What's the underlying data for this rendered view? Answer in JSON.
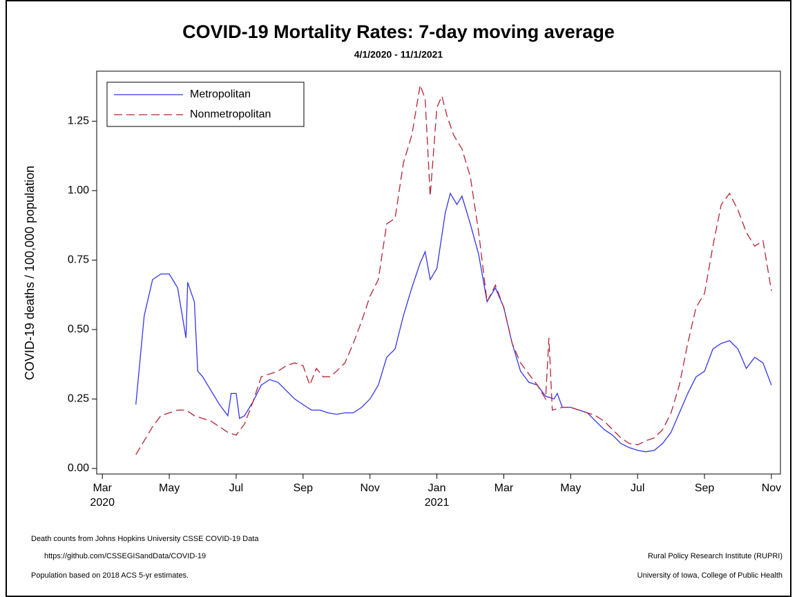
{
  "chart_data": {
    "type": "line",
    "title": "COVID-19 Mortality Rates: 7-day moving average",
    "subtitle": "4/1/2020 - 11/1/2021",
    "y_label": "COVID-19 deaths / 100,000 population",
    "xlim": [
      -0.17,
      20.27
    ],
    "xticks": [
      {
        "value": 0,
        "label": "Mar"
      },
      {
        "value": 2,
        "label": "May"
      },
      {
        "value": 4,
        "label": "Jul"
      },
      {
        "value": 6,
        "label": "Sep"
      },
      {
        "value": 8,
        "label": "Nov"
      },
      {
        "value": 10,
        "label": "Jan"
      },
      {
        "value": 12,
        "label": "Mar"
      },
      {
        "value": 14,
        "label": "May"
      },
      {
        "value": 16,
        "label": "Jul"
      },
      {
        "value": 18,
        "label": "Sep"
      },
      {
        "value": 20,
        "label": "Nov"
      }
    ],
    "year_labels": [
      {
        "value": 0,
        "label": "2020"
      },
      {
        "value": 10,
        "label": "2021"
      }
    ],
    "ylim": [
      -0.02,
      1.43
    ],
    "yticks": [
      {
        "value": 0,
        "label": "0.00"
      },
      {
        "value": 0.25,
        "label": "0.25"
      },
      {
        "value": 0.5,
        "label": "0.50"
      },
      {
        "value": 0.75,
        "label": "0.75"
      },
      {
        "value": 1,
        "label": "1.00"
      },
      {
        "value": 1.25,
        "label": "1.25"
      }
    ],
    "legend": "top-left",
    "series": [
      {
        "name": "Metropolitan",
        "color": "#3333ee",
        "dash": false,
        "x": [
          1.0,
          1.25,
          1.5,
          1.75,
          2.0,
          2.25,
          2.5,
          2.55,
          2.75,
          2.85,
          3.0,
          3.25,
          3.5,
          3.75,
          3.85,
          4.0,
          4.1,
          4.25,
          4.5,
          4.75,
          5.0,
          5.25,
          5.5,
          5.75,
          6.0,
          6.25,
          6.5,
          6.75,
          7.0,
          7.25,
          7.5,
          7.75,
          8.0,
          8.25,
          8.5,
          8.75,
          9.0,
          9.25,
          9.5,
          9.65,
          9.8,
          10.0,
          10.25,
          10.4,
          10.6,
          10.75,
          11.0,
          11.25,
          11.5,
          11.75,
          12.0,
          12.25,
          12.5,
          12.75,
          13.0,
          13.25,
          13.5,
          13.6,
          13.75,
          14.0,
          14.25,
          14.5,
          14.75,
          15.0,
          15.25,
          15.5,
          15.75,
          16.0,
          16.25,
          16.5,
          16.75,
          17.0,
          17.25,
          17.5,
          17.75,
          18.0,
          18.25,
          18.5,
          18.75,
          19.0,
          19.25,
          19.5,
          19.75,
          20.0
        ],
        "values": [
          0.23,
          0.55,
          0.68,
          0.7,
          0.7,
          0.65,
          0.47,
          0.67,
          0.6,
          0.35,
          0.33,
          0.28,
          0.23,
          0.19,
          0.27,
          0.27,
          0.18,
          0.19,
          0.24,
          0.3,
          0.32,
          0.31,
          0.28,
          0.25,
          0.23,
          0.21,
          0.21,
          0.2,
          0.195,
          0.2,
          0.2,
          0.22,
          0.25,
          0.3,
          0.4,
          0.43,
          0.55,
          0.65,
          0.74,
          0.78,
          0.68,
          0.72,
          0.92,
          0.99,
          0.95,
          0.98,
          0.88,
          0.77,
          0.6,
          0.65,
          0.58,
          0.45,
          0.35,
          0.31,
          0.3,
          0.26,
          0.25,
          0.27,
          0.22,
          0.22,
          0.21,
          0.2,
          0.17,
          0.14,
          0.12,
          0.09,
          0.075,
          0.065,
          0.06,
          0.065,
          0.09,
          0.13,
          0.2,
          0.27,
          0.33,
          0.35,
          0.43,
          0.45,
          0.46,
          0.43,
          0.36,
          0.4,
          0.38,
          0.3
        ]
      },
      {
        "name": "Nonmetropolitan",
        "color": "#b22234",
        "dash": true,
        "x": [
          1.0,
          1.25,
          1.5,
          1.75,
          2.0,
          2.25,
          2.5,
          2.75,
          3.0,
          3.25,
          3.5,
          3.75,
          4.0,
          4.25,
          4.5,
          4.75,
          5.0,
          5.25,
          5.5,
          5.75,
          6.0,
          6.2,
          6.4,
          6.6,
          6.8,
          7.0,
          7.25,
          7.5,
          7.75,
          8.0,
          8.25,
          8.5,
          8.75,
          9.0,
          9.25,
          9.5,
          9.65,
          9.8,
          10.0,
          10.15,
          10.3,
          10.5,
          10.75,
          11.0,
          11.25,
          11.5,
          11.75,
          12.0,
          12.25,
          12.5,
          12.75,
          13.0,
          13.25,
          13.35,
          13.45,
          13.75,
          14.0,
          14.25,
          14.5,
          14.75,
          15.0,
          15.25,
          15.5,
          15.75,
          16.0,
          16.25,
          16.5,
          16.75,
          17.0,
          17.25,
          17.5,
          17.75,
          18.0,
          18.25,
          18.5,
          18.75,
          19.0,
          19.25,
          19.5,
          19.75,
          20.0
        ],
        "values": [
          0.05,
          0.1,
          0.15,
          0.19,
          0.2,
          0.21,
          0.21,
          0.19,
          0.18,
          0.17,
          0.15,
          0.13,
          0.12,
          0.16,
          0.24,
          0.33,
          0.34,
          0.35,
          0.37,
          0.38,
          0.37,
          0.3,
          0.36,
          0.33,
          0.33,
          0.35,
          0.38,
          0.45,
          0.53,
          0.62,
          0.68,
          0.88,
          0.9,
          1.1,
          1.2,
          1.38,
          1.33,
          0.98,
          1.3,
          1.34,
          1.27,
          1.2,
          1.15,
          1.05,
          0.85,
          0.6,
          0.66,
          0.58,
          0.45,
          0.38,
          0.34,
          0.3,
          0.25,
          0.47,
          0.21,
          0.22,
          0.22,
          0.21,
          0.2,
          0.19,
          0.17,
          0.14,
          0.11,
          0.09,
          0.085,
          0.1,
          0.11,
          0.14,
          0.2,
          0.3,
          0.45,
          0.58,
          0.63,
          0.8,
          0.95,
          0.99,
          0.93,
          0.85,
          0.8,
          0.82,
          0.64
        ]
      }
    ],
    "notes_left": [
      "Death counts from Johns Hopkins University CSSE COVID-19 Data",
      "https://github.com/CSSEGISandData/COVID-19",
      "Population based on 2018 ACS 5-yr estimates."
    ],
    "notes_right": [
      "Rural Policy Research Institute (RUPRI)",
      "University of Iowa, College of Public Health"
    ]
  }
}
